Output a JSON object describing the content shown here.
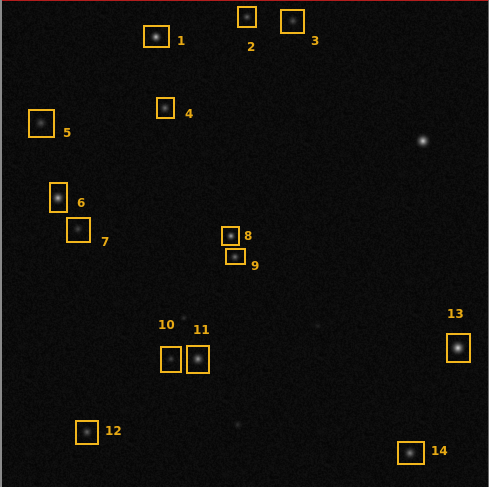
{
  "image": {
    "background_color": "#050505",
    "highlight_color": "#f2b61c",
    "label_color": "#e8aa14"
  },
  "rois": [
    {
      "label": "1"
    },
    {
      "label": "2"
    },
    {
      "label": "3"
    },
    {
      "label": "4"
    },
    {
      "label": "5"
    },
    {
      "label": "6"
    },
    {
      "label": "7"
    },
    {
      "label": "8"
    },
    {
      "label": "9"
    },
    {
      "label": "10"
    },
    {
      "label": "11"
    },
    {
      "label": "12"
    },
    {
      "label": "13"
    },
    {
      "label": "14"
    }
  ]
}
